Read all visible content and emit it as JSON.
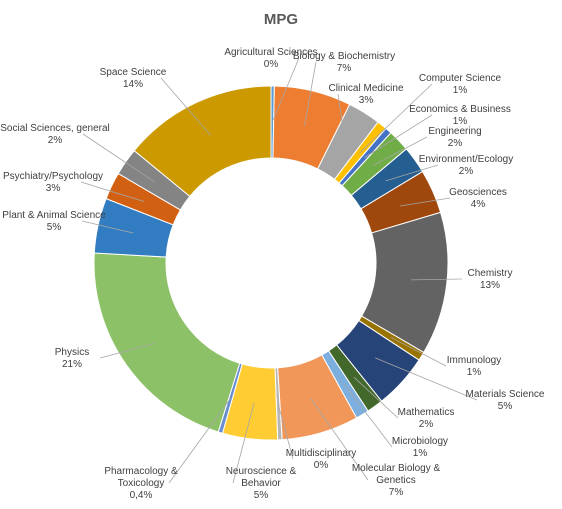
{
  "chart_data": {
    "type": "pie",
    "variant": "doughnut",
    "title": "MPG",
    "slices": [
      {
        "name": "Agricultural Sciences",
        "value": 0.3,
        "label_pct": "0%",
        "color": "#5b9bd5"
      },
      {
        "name": "Biology & Biochemistry",
        "value": 7,
        "label_pct": "7%",
        "color": "#ed7d31"
      },
      {
        "name": "Clinical Medicine",
        "value": 3,
        "label_pct": "3%",
        "color": "#a5a5a5"
      },
      {
        "name": "Computer Science",
        "value": 0.9,
        "label_pct": "1%",
        "color": "#ffc000"
      },
      {
        "name": "Economics & Business",
        "value": 0.6,
        "label_pct": "1%",
        "color": "#4472c4"
      },
      {
        "name": "Engineering",
        "value": 2,
        "label_pct": "2%",
        "color": "#70ad47"
      },
      {
        "name": "Environment/Ecology",
        "value": 2.5,
        "label_pct": "2%",
        "color": "#255e91"
      },
      {
        "name": "Geosciences",
        "value": 4,
        "label_pct": "4%",
        "color": "#9e480e"
      },
      {
        "name": "Chemistry",
        "value": 13,
        "label_pct": "13%",
        "color": "#636363"
      },
      {
        "name": "Immunology",
        "value": 0.8,
        "label_pct": "1%",
        "color": "#997300"
      },
      {
        "name": "Materials Science",
        "value": 5,
        "label_pct": "5%",
        "color": "#264478"
      },
      {
        "name": "Mathematics",
        "value": 1.5,
        "label_pct": "2%",
        "color": "#43682b"
      },
      {
        "name": "Microbiology",
        "value": 1.2,
        "label_pct": "1%",
        "color": "#7cafdd"
      },
      {
        "name": "Molecular Biology & Genetics",
        "value": 7,
        "label_pct": "7%",
        "color": "#f1975a"
      },
      {
        "name": "Multidisciplinary",
        "value": 0.4,
        "label_pct": "0%",
        "color": "#b7b7b7"
      },
      {
        "name": "Neuroscience & Behavior",
        "value": 5,
        "label_pct": "5%",
        "color": "#ffcd33"
      },
      {
        "name": "Pharmacology & Toxicology",
        "value": 0.4,
        "label_pct": "0,4%",
        "color": "#698ed0"
      },
      {
        "name": "Physics",
        "value": 21,
        "label_pct": "21%",
        "color": "#8cc168"
      },
      {
        "name": "Plant & Animal Science",
        "value": 5,
        "label_pct": "5%",
        "color": "#327dc2"
      },
      {
        "name": "Psychiatry/Psychology",
        "value": 2.5,
        "label_pct": "3%",
        "color": "#d26012"
      },
      {
        "name": "Social Sciences, general",
        "value": 2.5,
        "label_pct": "2%",
        "color": "#848484"
      },
      {
        "name": "Space Science",
        "value": 14,
        "label_pct": "14%",
        "color": "#cc9a00"
      }
    ]
  }
}
